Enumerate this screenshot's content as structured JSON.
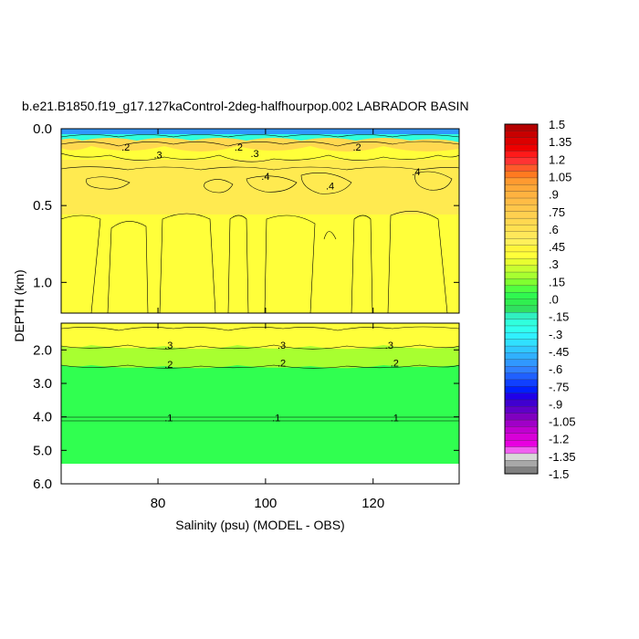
{
  "chart_data": {
    "type": "heatmap",
    "title": "b.e21.B1850.f19_g17.127kaControl-2deg-halfhourpop.002 LABRADOR BASIN",
    "xlabel": "Salinity (psu) (MODEL - OBS)",
    "ylabel": "DEPTH (km)",
    "xlim": [
      62,
      136
    ],
    "x_ticks": [
      "80",
      "100",
      "120"
    ],
    "x_tick_values": [
      80,
      100,
      120
    ],
    "upper_panel": {
      "ylim": [
        0.0,
        1.2
      ],
      "y_ticks": [
        "0.0",
        "0.5",
        "1.0"
      ],
      "y_tick_values": [
        0.0,
        0.5,
        1.0
      ]
    },
    "lower_panel": {
      "ylim": [
        1.2,
        6.0
      ],
      "y_ticks": [
        "2.0",
        "3.0",
        "4.0",
        "5.0",
        "6.0"
      ],
      "y_tick_values": [
        2.0,
        3.0,
        4.0,
        5.0,
        6.0
      ]
    },
    "contour_labels": [
      {
        "text": ".3",
        "x": 80,
        "depth": 0.17
      },
      {
        "text": ".3",
        "x": 98,
        "depth": 0.16
      },
      {
        "text": ".4",
        "x": 100,
        "depth": 0.31
      },
      {
        "text": ".4",
        "x": 112,
        "depth": 0.37
      },
      {
        "text": ".4",
        "x": 128,
        "depth": 0.28
      },
      {
        "text": ".2",
        "x": 74,
        "depth": 0.12
      },
      {
        "text": ".2",
        "x": 95,
        "depth": 0.12
      },
      {
        "text": ".2",
        "x": 117,
        "depth": 0.12
      },
      {
        "text": ".3",
        "x": 82,
        "depth": 1.85
      },
      {
        "text": ".3",
        "x": 103,
        "depth": 1.85
      },
      {
        "text": ".3",
        "x": 123,
        "depth": 1.85
      },
      {
        "text": ".2",
        "x": 82,
        "depth": 2.43
      },
      {
        "text": ".2",
        "x": 103,
        "depth": 2.38
      },
      {
        "text": ".2",
        "x": 124,
        "depth": 2.38
      },
      {
        "text": ".1",
        "x": 82,
        "depth": 4.02
      },
      {
        "text": ".1",
        "x": 102,
        "depth": 4.02
      },
      {
        "text": ".1",
        "x": 124,
        "depth": 4.02
      }
    ],
    "colorbar": {
      "labels": [
        "1.5",
        "1.35",
        "1.2",
        "1.05",
        ".9",
        ".75",
        ".6",
        ".45",
        ".3",
        ".15",
        ".0",
        "-.15",
        "-.3",
        "-.45",
        "-.6",
        "-.75",
        "-.9",
        "-1.05",
        "-1.2",
        "-1.35",
        "-1.5"
      ],
      "colors": [
        "#b40000",
        "#c80000",
        "#dc0000",
        "#ee0000",
        "#ff1a1a",
        "#ff3333",
        "#ff5a2a",
        "#ff7a20",
        "#ff9a30",
        "#ffa838",
        "#ffb240",
        "#ffbc45",
        "#ffc64a",
        "#ffd050",
        "#ffd850",
        "#ffe050",
        "#ffe85a",
        "#fff05a",
        "#fff53a",
        "#ffff3a",
        "#e8ff30",
        "#c8ff30",
        "#a8ff30",
        "#80ff30",
        "#50ff40",
        "#30f850",
        "#30ee50",
        "#30e060",
        "#30f0c0",
        "#30ffdd",
        "#30ffee",
        "#30f0ff",
        "#30e0ff",
        "#30c8ff",
        "#30b0ff",
        "#3098ff",
        "#3080ff",
        "#2060ff",
        "#1040ff",
        "#0020ff",
        "#2000e8",
        "#4000d0",
        "#6000c8",
        "#8000c0",
        "#a000c8",
        "#c000d0",
        "#d800d8",
        "#e800e0",
        "#f060f0",
        "#d8d8d8",
        "#a8a8a8",
        "#808080"
      ]
    }
  }
}
